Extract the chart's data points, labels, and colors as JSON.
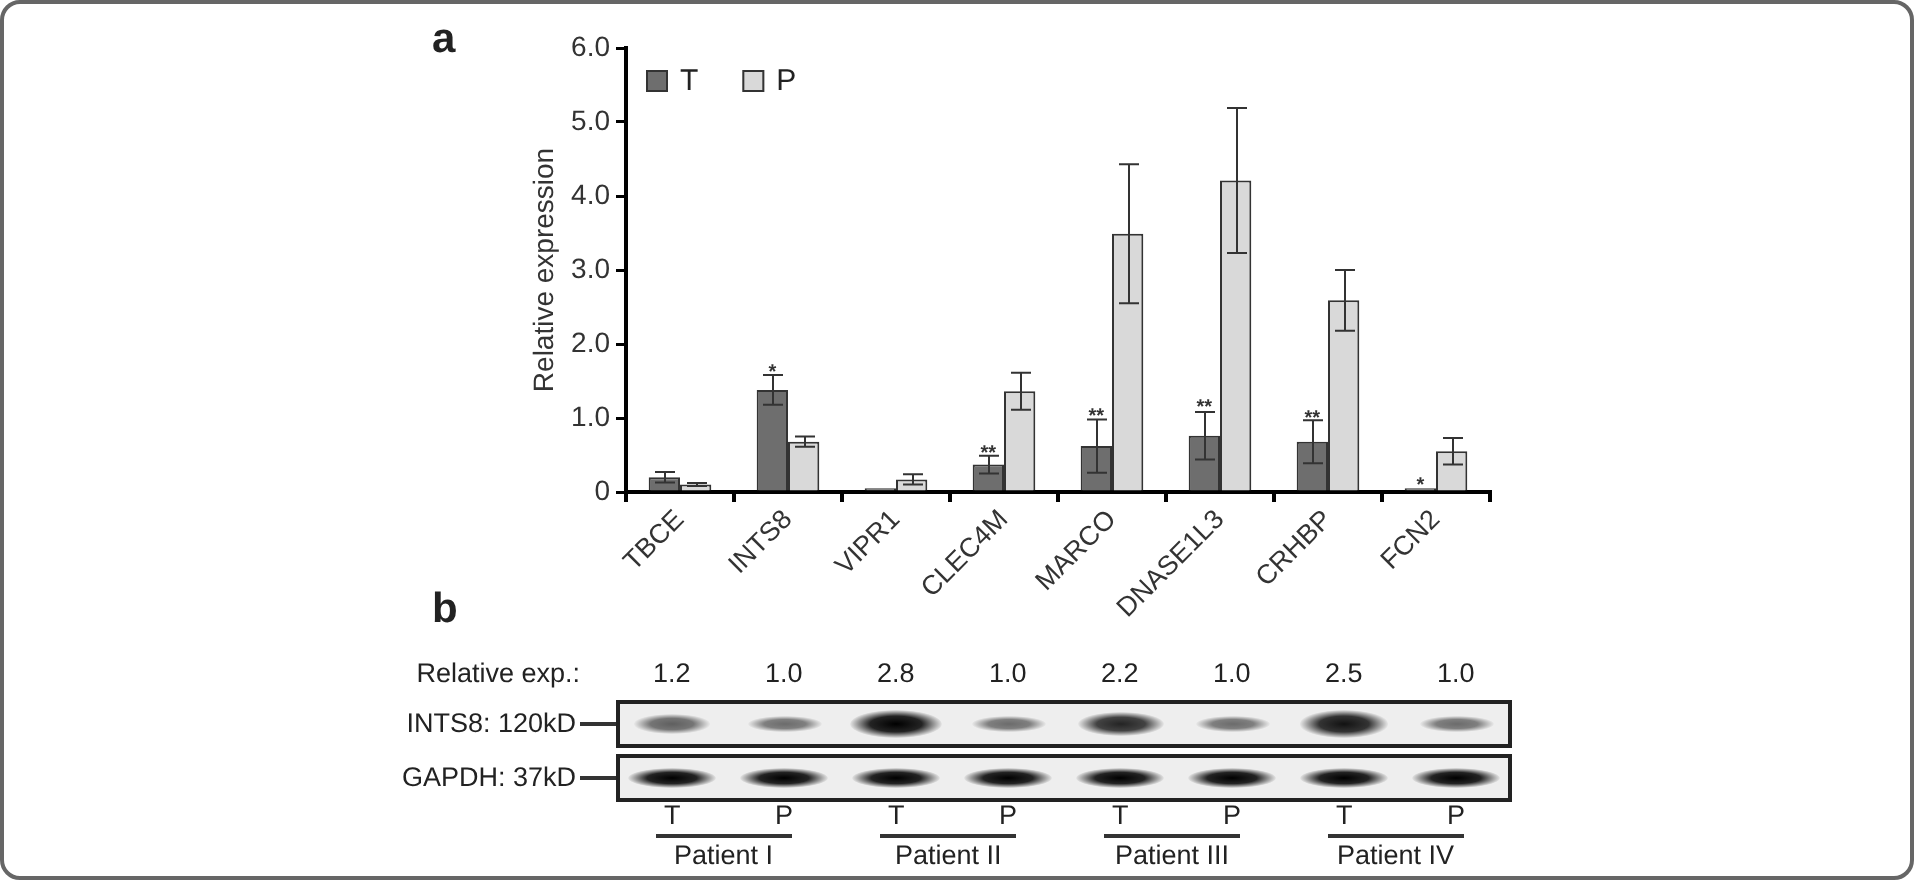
{
  "chart_data": [
    {
      "type": "bar",
      "title": "a",
      "ylabel": "Relative expression",
      "categories": [
        "TBCE",
        "INTS8",
        "VIPR1",
        "CLEC4M",
        "MARCO",
        "DNASE1L3",
        "CRHBP",
        "FCN2"
      ],
      "series": [
        {
          "name": "T",
          "color": "#6e6e6e",
          "values": [
            0.2,
            1.38,
            0.05,
            0.37,
            0.62,
            0.76,
            0.68,
            0.05
          ],
          "errors": [
            0.07,
            0.2,
            null,
            0.12,
            0.36,
            0.32,
            0.29,
            null
          ]
        },
        {
          "name": "P",
          "color": "#d9d9d9",
          "values": [
            0.1,
            0.68,
            0.17,
            1.36,
            3.49,
            4.21,
            2.59,
            0.55
          ],
          "errors": [
            0.02,
            0.07,
            0.07,
            0.25,
            0.94,
            0.98,
            0.41,
            0.18
          ]
        }
      ],
      "ylim": [
        0,
        6
      ],
      "yticks": [
        0,
        {
          "value": 1,
          "label": "1.0"
        },
        {
          "value": 2,
          "label": "2.0"
        },
        {
          "value": 3,
          "label": "3.0"
        },
        {
          "value": 4,
          "label": "4.0"
        },
        {
          "value": 5,
          "label": "5.0"
        },
        {
          "value": 6,
          "label": "6.0"
        }
      ],
      "grid": false,
      "legend": "top left",
      "annotations": [
        {
          "text": "*",
          "x": "INTS8",
          "y": 1.7
        },
        {
          "text": "**",
          "x": "CLEC4M",
          "y": 0.6
        },
        {
          "text": "**",
          "x": "MARCO",
          "y": 1.1
        },
        {
          "text": "**",
          "x": "DNASE1L3",
          "y": 1.22
        },
        {
          "text": "**",
          "x": "CRHBP",
          "y": 1.07
        },
        {
          "text": "*",
          "x": "FCN2",
          "y": 0.17
        }
      ]
    },
    {
      "type": "other",
      "title": "b",
      "ylabel": "Relative exp.:",
      "categories": [
        "T",
        "P",
        "T",
        "P",
        "T",
        "P",
        "T",
        "P"
      ],
      "values": [
        1.2,
        1.0,
        2.8,
        1.0,
        2.2,
        1.0,
        2.5,
        1.0
      ],
      "value_labels": [
        "1.2",
        "1.0",
        "2.8",
        "1.0",
        "2.2",
        "1.0",
        "2.5",
        "1.0"
      ],
      "y_categories": [
        "INTS8: 120kD",
        "GAPDH: 37kD"
      ],
      "annotations": [
        "Patient I",
        "Patient II",
        "Patient III",
        "Patient IV"
      ]
    }
  ]
}
